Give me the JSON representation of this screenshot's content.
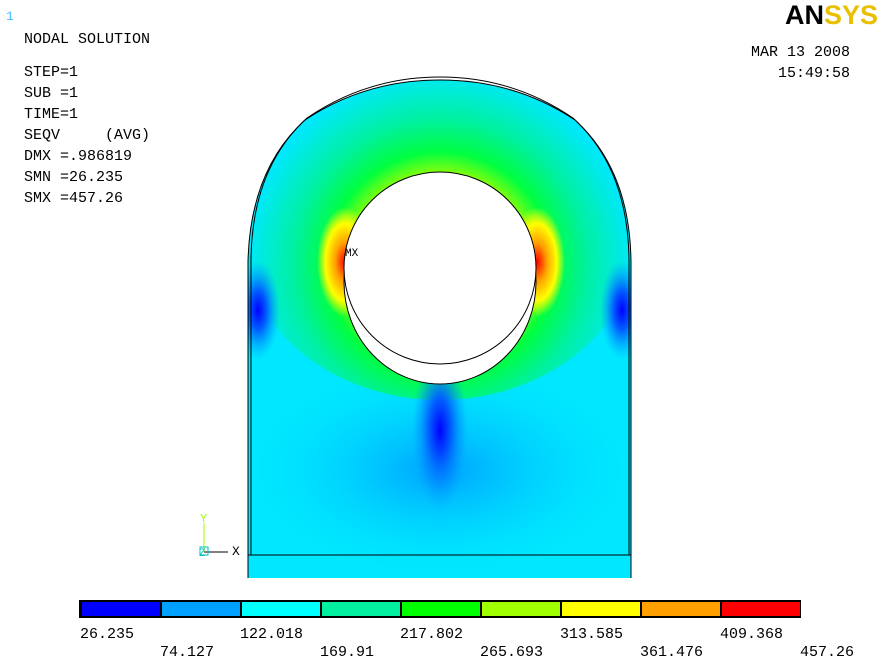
{
  "window_number": "1",
  "logo": {
    "part1": "AN",
    "part2": "SYS"
  },
  "info": [
    "NODAL SOLUTION",
    "STEP=1",
    "SUB =1",
    "TIME=1",
    "SEQV     (AVG)",
    "DMX =.986819",
    "SMN =26.235",
    "SMX =457.26"
  ],
  "date": "MAR 13 2008",
  "time": "15:49:58",
  "max_marker": "MX",
  "triad": {
    "y": "Y",
    "z": "Z",
    "x": "X"
  },
  "legend": {
    "colors": [
      "#0000ff",
      "#00a0ff",
      "#00ffff",
      "#00f0a0",
      "#00ff00",
      "#a0ff00",
      "#ffff00",
      "#ffa000",
      "#ff0000"
    ],
    "labels": [
      "26.235",
      "74.127",
      "122.018",
      "169.91",
      "217.802",
      "265.693",
      "313.585",
      "361.476",
      "409.368",
      "457.26"
    ]
  }
}
